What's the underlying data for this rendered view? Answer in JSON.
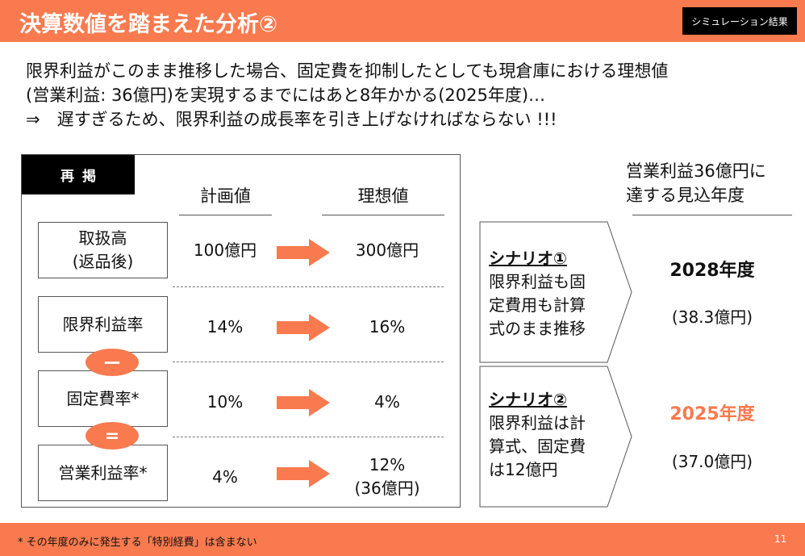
{
  "header": {
    "title": "決算数値を踏まえた分析②",
    "tag": "シミュレーション結果",
    "bg_color": "#f97a4e"
  },
  "intro": {
    "line1": "限界利益がこのまま推移した場合、固定費を抑制したとしても現倉庫における理想値",
    "line2": "(営業利益: 36億円)を実現するまでにはあと8年かかる(2025年度)…",
    "line3": "⇒　遅すぎるため、限界利益の成長率を引き上げなければならない !!!"
  },
  "table": {
    "badge": "再掲",
    "col_plan": "計画値",
    "col_ideal": "理想値",
    "rows": [
      {
        "label_l1": "取扱高",
        "label_l2": "(返品後)",
        "plan": "100億円",
        "ideal_l1": "300億円",
        "ideal_l2": ""
      },
      {
        "label_l1": "限界利益率",
        "label_l2": "",
        "plan": "14%",
        "ideal_l1": "16%",
        "ideal_l2": ""
      },
      {
        "label_l1": "固定費率*",
        "label_l2": "",
        "plan": "10%",
        "ideal_l1": "4%",
        "ideal_l2": ""
      },
      {
        "label_l1": "営業利益率*",
        "label_l2": "",
        "plan": "4%",
        "ideal_l1": "12%",
        "ideal_l2": "(36億円)"
      }
    ],
    "op_minus": "ー",
    "op_equals": "=",
    "accent_color": "#f97a4e"
  },
  "scenarios": {
    "heading_l1": "営業利益36億円に",
    "heading_l2": "達する見込年度",
    "items": [
      {
        "title": "シナリオ①",
        "l1": "限界利益も固",
        "l2": "定費用も計算",
        "l3": "式のまま推移",
        "year": "2028年度",
        "amount": "(38.3億円)",
        "year_color": "#111111"
      },
      {
        "title": "シナリオ②",
        "l1": "限界利益は計",
        "l2": "算式、固定費",
        "l3": "は12億円",
        "year": "2025年度",
        "amount": "(37.0億円)",
        "year_color": "#f97a4e"
      }
    ]
  },
  "footer": {
    "note": "* その年度のみに発生する「特別経費」は含まない",
    "page": "11"
  }
}
